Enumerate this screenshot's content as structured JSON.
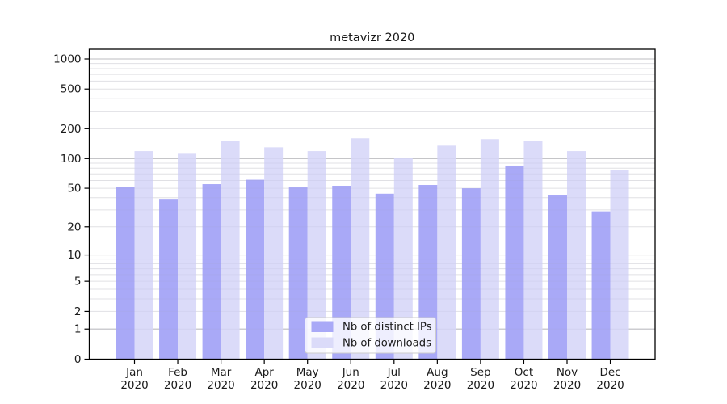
{
  "figure": {
    "background": "#ffffff"
  },
  "chart_data": {
    "type": "bar",
    "title": "metavizr 2020",
    "categories": [
      "Jan",
      "Feb",
      "Mar",
      "Apr",
      "May",
      "Jun",
      "Jul",
      "Aug",
      "Sep",
      "Oct",
      "Nov",
      "Dec"
    ],
    "category_year": "2020",
    "series": [
      {
        "name": "Nb of distinct IPs",
        "color": "#a9a9f7",
        "values": [
          52,
          39,
          55,
          61,
          51,
          53,
          44,
          54,
          50,
          85,
          43,
          29
        ]
      },
      {
        "name": "Nb of downloads",
        "color": "#dbdbf9",
        "values": [
          119,
          114,
          152,
          130,
          119,
          160,
          102,
          135,
          157,
          152,
          119,
          76
        ]
      }
    ],
    "xlabel": "",
    "ylabel": "",
    "yscale": "symlog-log1p",
    "ylim": [
      0,
      1100
    ],
    "yticks": [
      0,
      1,
      2,
      5,
      10,
      20,
      50,
      100,
      200,
      500,
      1000
    ],
    "y_major_gridlines": [
      1,
      10,
      100,
      1000
    ],
    "y_minor_gridlines": [
      2,
      3,
      4,
      5,
      6,
      7,
      8,
      9,
      20,
      30,
      40,
      50,
      60,
      70,
      80,
      90,
      200,
      300,
      400,
      500,
      600,
      700,
      800,
      900
    ],
    "grid": true,
    "legend_position": "lower center",
    "colors": {
      "grid_major": "#c3c3c3",
      "grid_minor": "#ebebeb",
      "axis": "#000000",
      "text": "#1a1a1a",
      "legend_border": "#cccccc",
      "legend_bg_rgba": "rgba(255,255,255,0.8)"
    }
  }
}
